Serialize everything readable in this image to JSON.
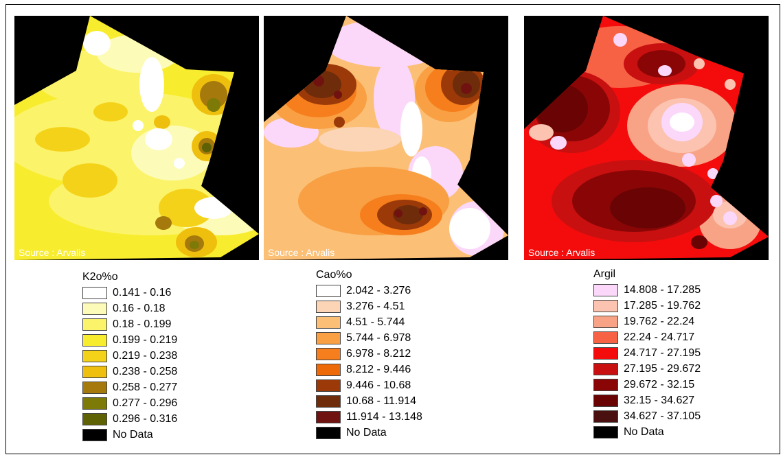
{
  "maps": [
    {
      "id": "k2o",
      "source": "Source : Arvalis",
      "title": "K2o%o",
      "classes": [
        {
          "label": "0.141 - 0.16",
          "color": "#ffffff"
        },
        {
          "label": "0.16 - 0.18",
          "color": "#fdfbb8"
        },
        {
          "label": "0.18 - 0.199",
          "color": "#fbf46a"
        },
        {
          "label": "0.199 - 0.219",
          "color": "#f8ec2e"
        },
        {
          "label": "0.219 - 0.238",
          "color": "#f5d21a"
        },
        {
          "label": "0.238 - 0.258",
          "color": "#efbf0e"
        },
        {
          "label": "0.258 - 0.277",
          "color": "#a5790c"
        },
        {
          "label": "0.277 - 0.296",
          "color": "#7d7a08"
        },
        {
          "label": "0.296 - 0.316",
          "color": "#5e6104"
        }
      ],
      "nodata": {
        "label": "No Data",
        "color": "#000000"
      }
    },
    {
      "id": "cao",
      "source": "Source : Arvalis",
      "title": "Cao%o",
      "classes": [
        {
          "label": "2.042 - 3.276",
          "color": "#ffffff"
        },
        {
          "label": "3.276 - 4.51",
          "color": "#fcd4b6"
        },
        {
          "label": "4.51 - 5.744",
          "color": "#fbbf76"
        },
        {
          "label": "5.744 - 6.978",
          "color": "#f8a043"
        },
        {
          "label": "6.978 - 8.212",
          "color": "#f67e1c"
        },
        {
          "label": "8.212 - 9.446",
          "color": "#ee6a08"
        },
        {
          "label": "9.446 - 10.68",
          "color": "#9b3a08"
        },
        {
          "label": "10.68 - 11.914",
          "color": "#6e2c0a"
        },
        {
          "label": "11.914 - 13.148",
          "color": "#701310"
        }
      ],
      "nodata": {
        "label": "No Data",
        "color": "#000000"
      }
    },
    {
      "id": "argil",
      "source": "Source : Arvalis",
      "title": "Argil",
      "classes": [
        {
          "label": "14.808 - 17.285",
          "color": "#fbd8fa"
        },
        {
          "label": "17.285 - 19.762",
          "color": "#fbc3b0"
        },
        {
          "label": "19.762 - 22.24",
          "color": "#f8a386"
        },
        {
          "label": "22.24 - 24.717",
          "color": "#f86244"
        },
        {
          "label": "24.717 - 27.195",
          "color": "#f40c0c"
        },
        {
          "label": "27.195 - 29.672",
          "color": "#c81010"
        },
        {
          "label": "29.672 - 32.15",
          "color": "#8a0606"
        },
        {
          "label": "32.15 - 34.627",
          "color": "#6a0404"
        },
        {
          "label": "34.627 - 37.105",
          "color": "#4a1010"
        }
      ],
      "nodata": {
        "label": "No Data",
        "color": "#000000"
      }
    }
  ]
}
